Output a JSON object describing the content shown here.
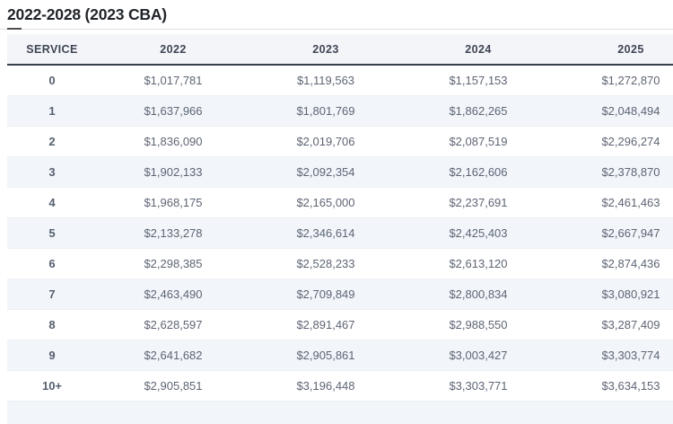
{
  "page": {
    "title": "2022-2028 (2023 CBA)"
  },
  "colors": {
    "header_bg": "#f3f5f8",
    "header_border": "#373e4a",
    "row_alt_bg": "#f2f6fa",
    "row_border": "#eceff3",
    "value_text": "#5d6574",
    "title_text": "#212529",
    "rule_light": "#dcdfe3",
    "rule_accent": "#4d4f52"
  },
  "chart_data": {
    "type": "table",
    "title": "2022-2028 (2023 CBA)",
    "columns": [
      "SERVICE",
      "2022",
      "2023",
      "2024",
      "2025"
    ],
    "rows": [
      {
        "service": "0",
        "values": [
          "$1,017,781",
          "$1,119,563",
          "$1,157,153",
          "$1,272,870"
        ]
      },
      {
        "service": "1",
        "values": [
          "$1,637,966",
          "$1,801,769",
          "$1,862,265",
          "$2,048,494"
        ]
      },
      {
        "service": "2",
        "values": [
          "$1,836,090",
          "$2,019,706",
          "$2,087,519",
          "$2,296,274"
        ]
      },
      {
        "service": "3",
        "values": [
          "$1,902,133",
          "$2,092,354",
          "$2,162,606",
          "$2,378,870"
        ]
      },
      {
        "service": "4",
        "values": [
          "$1,968,175",
          "$2,165,000",
          "$2,237,691",
          "$2,461,463"
        ]
      },
      {
        "service": "5",
        "values": [
          "$2,133,278",
          "$2,346,614",
          "$2,425,403",
          "$2,667,947"
        ]
      },
      {
        "service": "6",
        "values": [
          "$2,298,385",
          "$2,528,233",
          "$2,613,120",
          "$2,874,436"
        ]
      },
      {
        "service": "7",
        "values": [
          "$2,463,490",
          "$2,709,849",
          "$2,800,834",
          "$3,080,921"
        ]
      },
      {
        "service": "8",
        "values": [
          "$2,628,597",
          "$2,891,467",
          "$2,988,550",
          "$3,287,409"
        ]
      },
      {
        "service": "9",
        "values": [
          "$2,641,682",
          "$2,905,861",
          "$3,003,427",
          "$3,303,774"
        ]
      },
      {
        "service": "10+",
        "values": [
          "$2,905,851",
          "$3,196,448",
          "$3,303,771",
          "$3,634,153"
        ]
      }
    ],
    "layout_hints": {
      "alternating_rows": true,
      "partial_next_row_visible_at_bottom": true,
      "last_column_clipped_right": true
    }
  }
}
